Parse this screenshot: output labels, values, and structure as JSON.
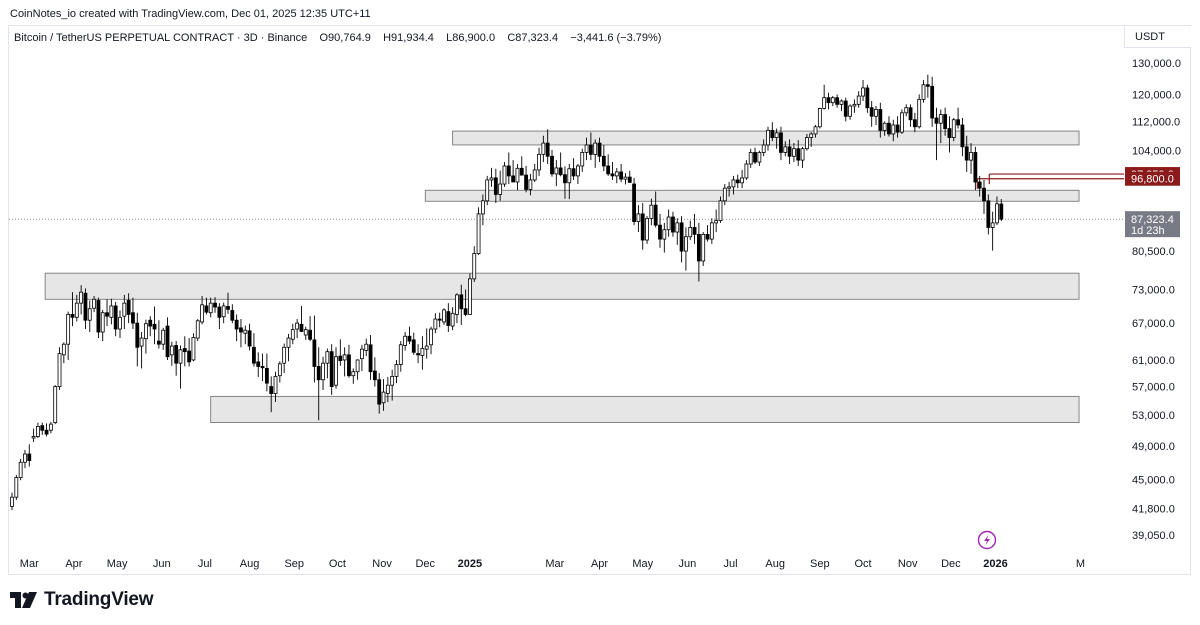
{
  "attribution": "CoinNotes_io created with TradingView.com, Dec 01, 2025 12:35 UTC+11",
  "legend": {
    "symbol": "Bitcoin / TetherUS PERPETUAL CONTRACT · 3D · Binance",
    "open": "O90,764.9",
    "high": "H91,934.4",
    "low": "L86,900.0",
    "close": "C87,323.4",
    "change": "−3,441.6 (−3.79%)"
  },
  "currency": "USDT",
  "logo_text": "TradingView",
  "colors": {
    "accent_red": "#8b1a1a",
    "last_price_tag": "#787b86",
    "zone_fill": "#e6e6e6",
    "zone_stroke": "#6b6b6b",
    "candle": "#000000"
  },
  "chart_data": {
    "type": "candlestick",
    "timeframe": "3D",
    "ylim": [
      37800,
      134000
    ],
    "y_scale": "log",
    "y_ticks": [
      "130,000.0",
      "120,000.0",
      "112,000.0",
      "104,000.0",
      "80,500.0",
      "73,000.0",
      "67,000.0",
      "61,000.0",
      "57,000.0",
      "53,000.0",
      "49,000.0",
      "45,000.0",
      "41,800.0",
      "39,050.0"
    ],
    "x_labels": [
      "Mar",
      "Apr",
      "May",
      "Jun",
      "Jul",
      "Aug",
      "Sep",
      "Oct",
      "Nov",
      "Dec",
      "2025",
      "Mar",
      "Apr",
      "May",
      "Jun",
      "Jul",
      "Aug",
      "Sep",
      "Oct",
      "Nov",
      "Dec",
      "2026",
      "M"
    ],
    "price_tags": [
      {
        "label": "97,959.0",
        "value": 97959,
        "color": "#8b1a1a"
      },
      {
        "label": "96,800.0",
        "value": 96800,
        "color": "#8b1a1a"
      }
    ],
    "last_price": {
      "label": "87,323.4",
      "countdown": "1d 23h",
      "value": 87323.4
    },
    "zones": [
      {
        "from": "2024-12-20",
        "to": "2026-02-28",
        "low": 105500,
        "high": 109300
      },
      {
        "from": "2024-12-01",
        "to": "2026-02-28",
        "low": 91400,
        "high": 94000
      },
      {
        "from": "2024-03-12",
        "to": "2026-02-28",
        "low": 71200,
        "high": 76100
      },
      {
        "from": "2024-07-05",
        "to": "2026-02-28",
        "low": 52000,
        "high": 55600
      }
    ],
    "candles": [
      [
        42000,
        43500,
        41600,
        43000
      ],
      [
        43000,
        45500,
        42700,
        45200
      ],
      [
        45200,
        47400,
        44900,
        47000
      ],
      [
        47000,
        48500,
        46300,
        48000
      ],
      [
        48000,
        49200,
        46500,
        47200
      ],
      [
        50000,
        51200,
        49500,
        50200
      ],
      [
        50200,
        52000,
        50000,
        51500
      ],
      [
        51600,
        52000,
        50400,
        51000
      ],
      [
        51000,
        51900,
        50200,
        50500
      ],
      [
        51000,
        52100,
        50600,
        51800
      ],
      [
        52000,
        57200,
        51800,
        57000
      ],
      [
        57000,
        63000,
        56500,
        62000
      ],
      [
        61800,
        63800,
        60500,
        63500
      ],
      [
        63500,
        69000,
        61000,
        68500
      ],
      [
        68500,
        72500,
        66500,
        68000
      ],
      [
        68000,
        72000,
        67300,
        70500
      ],
      [
        70500,
        73800,
        68500,
        72500
      ],
      [
        72300,
        73200,
        66000,
        67500
      ],
      [
        67500,
        71000,
        65500,
        69500
      ],
      [
        69600,
        71800,
        68900,
        71200
      ],
      [
        71000,
        71500,
        64500,
        65500
      ],
      [
        65500,
        69300,
        64000,
        68800
      ],
      [
        68800,
        71200,
        66500,
        68200
      ],
      [
        68000,
        71300,
        66800,
        70000
      ],
      [
        70000,
        70700,
        64800,
        66000
      ],
      [
        66000,
        69200,
        64500,
        68000
      ],
      [
        68200,
        72000,
        66000,
        70500
      ],
      [
        71000,
        72300,
        67000,
        68500
      ],
      [
        68800,
        71500,
        66000,
        67000
      ],
      [
        67000,
        68800,
        60000,
        63000
      ],
      [
        63200,
        65500,
        59700,
        64500
      ],
      [
        64400,
        67600,
        62000,
        66900
      ],
      [
        67500,
        68200,
        64800,
        66500
      ],
      [
        66800,
        69900,
        63500,
        66000
      ],
      [
        64000,
        67500,
        62800,
        63500
      ],
      [
        63500,
        66200,
        62600,
        65800
      ],
      [
        66500,
        68000,
        61000,
        61500
      ],
      [
        61800,
        63900,
        60100,
        63200
      ],
      [
        63300,
        64000,
        58600,
        60500
      ],
      [
        60500,
        63300,
        56700,
        62600
      ],
      [
        62800,
        64800,
        60000,
        62300
      ],
      [
        62400,
        64500,
        60000,
        60700
      ],
      [
        61000,
        65300,
        60800,
        64600
      ],
      [
        64500,
        67700,
        64000,
        67400
      ],
      [
        67200,
        71800,
        66800,
        70200
      ],
      [
        70000,
        71500,
        68500,
        68900
      ],
      [
        68800,
        71500,
        68000,
        70500
      ],
      [
        70500,
        71600,
        68800,
        69800
      ],
      [
        69800,
        70500,
        66000,
        68000
      ],
      [
        68100,
        70600,
        67000,
        70000
      ],
      [
        69900,
        72400,
        68600,
        69400
      ],
      [
        69200,
        70300,
        67000,
        67500
      ],
      [
        67500,
        68500,
        64000,
        66000
      ],
      [
        66200,
        67700,
        63000,
        65500
      ],
      [
        65300,
        66600,
        63500,
        65800
      ],
      [
        65700,
        66900,
        62500,
        63200
      ],
      [
        63000,
        65300,
        60000,
        60500
      ],
      [
        60700,
        62200,
        58400,
        60000
      ],
      [
        60000,
        62000,
        57800,
        59800
      ],
      [
        59700,
        62000,
        56300,
        57500
      ],
      [
        57000,
        58500,
        53400,
        56000
      ],
      [
        56000,
        59200,
        54800,
        58500
      ],
      [
        58600,
        60800,
        57600,
        60400
      ],
      [
        60500,
        63600,
        59000,
        63000
      ],
      [
        63000,
        65200,
        60800,
        64500
      ],
      [
        64300,
        66900,
        63500,
        65900
      ],
      [
        66000,
        67700,
        64500,
        67000
      ],
      [
        66800,
        70000,
        65500,
        65600
      ],
      [
        65000,
        66400,
        64200,
        65900
      ],
      [
        65800,
        68200,
        64000,
        64300
      ],
      [
        64200,
        68300,
        57600,
        60000
      ],
      [
        60000,
        63000,
        52300,
        58000
      ],
      [
        58000,
        61500,
        56500,
        60500
      ],
      [
        60500,
        62800,
        58200,
        62300
      ],
      [
        62300,
        63500,
        55800,
        57000
      ],
      [
        57200,
        63000,
        56700,
        61500
      ],
      [
        61600,
        64300,
        60100,
        60900
      ],
      [
        61000,
        63000,
        58500,
        61800
      ],
      [
        61800,
        63400,
        58300,
        58600
      ],
      [
        58600,
        59700,
        57400,
        59200
      ],
      [
        59200,
        61100,
        58000,
        61000
      ],
      [
        61200,
        63400,
        59300,
        62700
      ],
      [
        62500,
        64400,
        61600,
        63500
      ],
      [
        63400,
        65000,
        58000,
        59200
      ],
      [
        59300,
        61400,
        57000,
        58000
      ],
      [
        58000,
        59000,
        53200,
        54500
      ],
      [
        54700,
        58100,
        53600,
        56200
      ],
      [
        56000,
        58400,
        54800,
        57200
      ],
      [
        57200,
        59500,
        55000,
        58500
      ],
      [
        58500,
        61000,
        57500,
        60300
      ],
      [
        60300,
        64000,
        59200,
        63400
      ],
      [
        63300,
        65500,
        62500,
        64800
      ],
      [
        64800,
        66400,
        63500,
        64000
      ],
      [
        64200,
        65400,
        61800,
        62200
      ],
      [
        62000,
        63500,
        60500,
        61800
      ],
      [
        61700,
        64800,
        59500,
        62800
      ],
      [
        62700,
        66100,
        61200,
        63200
      ],
      [
        63400,
        66400,
        61900,
        66000
      ],
      [
        66000,
        68700,
        65300,
        67700
      ],
      [
        67700,
        68800,
        66300,
        67500
      ],
      [
        67200,
        69600,
        66700,
        69300
      ],
      [
        69000,
        70500,
        65500,
        66600
      ],
      [
        66500,
        69800,
        65800,
        68700
      ],
      [
        68500,
        72300,
        67000,
        72000
      ],
      [
        72000,
        73900,
        66700,
        69500
      ],
      [
        69500,
        73000,
        68200,
        68500
      ],
      [
        68500,
        76000,
        68400,
        75000
      ],
      [
        75000,
        81500,
        74400,
        80000
      ],
      [
        80000,
        90000,
        79700,
        88500
      ],
      [
        88500,
        93000,
        86000,
        91500
      ],
      [
        91500,
        97500,
        90500,
        96500
      ],
      [
        96500,
        99500,
        94800,
        97000
      ],
      [
        97000,
        99300,
        91000,
        93000
      ],
      [
        93000,
        98800,
        91500,
        95500
      ],
      [
        95500,
        101000,
        94800,
        100000
      ],
      [
        100000,
        103500,
        95500,
        97500
      ],
      [
        97500,
        101500,
        96000,
        96000
      ],
      [
        96000,
        100500,
        94000,
        99400
      ],
      [
        99400,
        102500,
        98200,
        97700
      ],
      [
        97700,
        100000,
        93500,
        94200
      ],
      [
        94200,
        98000,
        92800,
        96500
      ],
      [
        96500,
        100500,
        96000,
        99000
      ],
      [
        99000,
        104800,
        97500,
        103000
      ],
      [
        103000,
        108000,
        101000,
        106000
      ],
      [
        106000,
        109800,
        100500,
        102500
      ],
      [
        102500,
        104200,
        97300,
        98000
      ],
      [
        98000,
        101500,
        95000,
        99500
      ],
      [
        99500,
        103500,
        97400,
        97800
      ],
      [
        97800,
        99900,
        92000,
        95800
      ],
      [
        95800,
        100500,
        91900,
        99300
      ],
      [
        99300,
        102000,
        96500,
        97500
      ],
      [
        97500,
        100500,
        95500,
        100000
      ],
      [
        100000,
        104500,
        98500,
        103500
      ],
      [
        103500,
        107500,
        101500,
        105500
      ],
      [
        105500,
        108900,
        101500,
        103000
      ],
      [
        103000,
        107000,
        99500,
        106000
      ],
      [
        106000,
        107500,
        101000,
        102500
      ],
      [
        102500,
        105500,
        98700,
        100000
      ],
      [
        100000,
        103000,
        97500,
        98000
      ],
      [
        98000,
        101000,
        96500,
        97500
      ],
      [
        97500,
        99500,
        95700,
        98500
      ],
      [
        98500,
        100500,
        96000,
        96700
      ],
      [
        96700,
        98200,
        95400,
        97200
      ],
      [
        97200,
        98800,
        95800,
        95900
      ],
      [
        95500,
        97000,
        86000,
        86800
      ],
      [
        86800,
        90500,
        84500,
        88500
      ],
      [
        88500,
        91000,
        80800,
        82800
      ],
      [
        82800,
        88000,
        82000,
        87500
      ],
      [
        87500,
        92000,
        86000,
        90500
      ],
      [
        90500,
        93700,
        85500,
        86000
      ],
      [
        86000,
        88500,
        81200,
        83000
      ],
      [
        83000,
        86500,
        80200,
        85000
      ],
      [
        85000,
        89500,
        83500,
        87800
      ],
      [
        87800,
        89000,
        83500,
        84500
      ],
      [
        84500,
        87500,
        81800,
        86500
      ],
      [
        86500,
        88000,
        78200,
        80500
      ],
      [
        80500,
        85500,
        76600,
        83500
      ],
      [
        83500,
        87000,
        82800,
        85500
      ],
      [
        85500,
        88500,
        82000,
        84000
      ],
      [
        84000,
        86500,
        74500,
        78500
      ],
      [
        78500,
        84500,
        77500,
        84000
      ],
      [
        84000,
        86000,
        82500,
        83000
      ],
      [
        83000,
        87500,
        82000,
        86500
      ],
      [
        86500,
        89500,
        84500,
        87000
      ],
      [
        87000,
        92500,
        86500,
        91500
      ],
      [
        91500,
        95500,
        90500,
        94500
      ],
      [
        94500,
        96000,
        92500,
        94800
      ],
      [
        94800,
        97500,
        93000,
        96500
      ],
      [
        96500,
        97800,
        94500,
        95800
      ],
      [
        95800,
        99000,
        94500,
        97000
      ],
      [
        97000,
        101500,
        96500,
        100500
      ],
      [
        100500,
        104500,
        99500,
        103500
      ],
      [
        103500,
        104800,
        100500,
        101000
      ],
      [
        101000,
        104000,
        100000,
        103500
      ],
      [
        103500,
        107000,
        102500,
        105500
      ],
      [
        105500,
        110500,
        104000,
        109500
      ],
      [
        109500,
        111800,
        106500,
        107500
      ],
      [
        107500,
        110000,
        104500,
        108800
      ],
      [
        108800,
        110500,
        101500,
        103500
      ],
      [
        103500,
        106500,
        102500,
        105000
      ],
      [
        105000,
        107000,
        100500,
        102500
      ],
      [
        102500,
        106000,
        101000,
        104500
      ],
      [
        104500,
        106800,
        100000,
        101500
      ],
      [
        101500,
        105000,
        99500,
        104500
      ],
      [
        104500,
        108500,
        104000,
        107500
      ],
      [
        107500,
        109000,
        105000,
        108500
      ],
      [
        108500,
        111000,
        107500,
        110500
      ],
      [
        110500,
        116000,
        110000,
        115800
      ],
      [
        115800,
        123000,
        115500,
        119000
      ],
      [
        119000,
        120500,
        115500,
        117500
      ],
      [
        117500,
        119500,
        116500,
        119000
      ],
      [
        119000,
        120000,
        116000,
        117000
      ],
      [
        117000,
        118500,
        115000,
        118000
      ],
      [
        118000,
        119000,
        112000,
        113500
      ],
      [
        113500,
        117000,
        112500,
        116500
      ],
      [
        116500,
        118500,
        114500,
        117000
      ],
      [
        117000,
        121000,
        116000,
        119500
      ],
      [
        119500,
        124500,
        118000,
        122000
      ],
      [
        122000,
        123000,
        114500,
        116000
      ],
      [
        116000,
        118000,
        110500,
        113500
      ],
      [
        113500,
        116500,
        111000,
        115500
      ],
      [
        115500,
        117500,
        107500,
        109500
      ],
      [
        109500,
        112000,
        108000,
        111500
      ],
      [
        111500,
        113500,
        107800,
        108500
      ],
      [
        108500,
        112500,
        106500,
        111000
      ],
      [
        111000,
        113500,
        107500,
        109000
      ],
      [
        109000,
        115500,
        108500,
        114500
      ],
      [
        114500,
        117000,
        113500,
        116000
      ],
      [
        116000,
        117000,
        110500,
        112500
      ],
      [
        112500,
        114500,
        109000,
        110500
      ],
      [
        110500,
        120000,
        110000,
        118500
      ],
      [
        118500,
        124500,
        117500,
        123000
      ],
      [
        123000,
        126200,
        119000,
        122500
      ],
      [
        122500,
        125500,
        110500,
        113000
      ],
      [
        113000,
        116000,
        101500,
        111500
      ],
      [
        111500,
        115500,
        106000,
        114000
      ],
      [
        114000,
        116000,
        108000,
        110000
      ],
      [
        110000,
        113500,
        103500,
        107500
      ],
      [
        107500,
        113000,
        106500,
        112500
      ],
      [
        112500,
        116000,
        110000,
        111000
      ],
      [
        111000,
        113000,
        102500,
        105000
      ],
      [
        105000,
        108000,
        98500,
        101500
      ],
      [
        101500,
        106000,
        98000,
        103500
      ],
      [
        103500,
        105000,
        94000,
        96000
      ],
      [
        96000,
        97500,
        92500,
        94500
      ],
      [
        94500,
        96500,
        88500,
        91500
      ],
      [
        91500,
        93000,
        84000,
        85500
      ],
      [
        85500,
        89000,
        80600,
        86500
      ],
      [
        86500,
        92500,
        86000,
        90800
      ],
      [
        90764.9,
        91934.4,
        86900,
        87323.4
      ]
    ]
  }
}
